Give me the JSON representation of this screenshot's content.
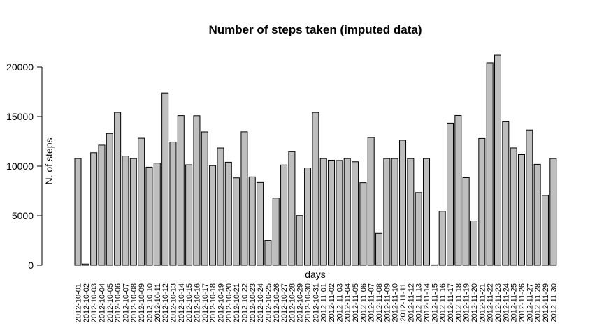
{
  "chart_data": {
    "type": "bar",
    "title": "Number of steps taken (imputed data)",
    "xlabel": "days",
    "ylabel": "N. of steps",
    "ylim": [
      0,
      20000
    ],
    "yticks": [
      0,
      5000,
      10000,
      15000,
      20000
    ],
    "ytick_labels": [
      "0",
      "5000",
      "10000",
      "15000",
      "20000"
    ],
    "grid": false,
    "bar_color": "#bebebe",
    "edge_color": "#000000",
    "categories": [
      "2012-10-01",
      "2012-10-02",
      "2012-10-03",
      "2012-10-04",
      "2012-10-05",
      "2012-10-06",
      "2012-10-07",
      "2012-10-08",
      "2012-10-09",
      "2012-10-10",
      "2012-10-11",
      "2012-10-12",
      "2012-10-13",
      "2012-10-14",
      "2012-10-15",
      "2012-10-16",
      "2012-10-17",
      "2012-10-18",
      "2012-10-19",
      "2012-10-20",
      "2012-10-21",
      "2012-10-22",
      "2012-10-23",
      "2012-10-24",
      "2012-10-25",
      "2012-10-26",
      "2012-10-27",
      "2012-10-28",
      "2012-10-29",
      "2012-10-30",
      "2012-10-31",
      "2012-11-01",
      "2012-11-02",
      "2012-11-03",
      "2012-11-04",
      "2012-11-05",
      "2012-11-06",
      "2012-11-07",
      "2012-11-08",
      "2012-11-09",
      "2012-11-10",
      "2012-11-11",
      "2012-11-12",
      "2012-11-13",
      "2012-11-14",
      "2012-11-15",
      "2012-11-16",
      "2012-11-17",
      "2012-11-18",
      "2012-11-19",
      "2012-11-20",
      "2012-11-21",
      "2012-11-22",
      "2012-11-23",
      "2012-11-24",
      "2012-11-25",
      "2012-11-26",
      "2012-11-27",
      "2012-11-28",
      "2012-11-29",
      "2012-11-30"
    ],
    "values": [
      10766,
      126,
      11352,
      12116,
      13294,
      15420,
      11015,
      10766,
      12811,
      9900,
      10304,
      17382,
      12426,
      15098,
      10139,
      15084,
      13452,
      10056,
      11829,
      10395,
      8821,
      13460,
      8918,
      8355,
      2492,
      6778,
      10119,
      11458,
      5018,
      9819,
      15414,
      10766,
      10600,
      10571,
      10766,
      10439,
      8334,
      12883,
      3219,
      10766,
      10766,
      12608,
      10765,
      7336,
      10766,
      41,
      5441,
      14339,
      15110,
      8841,
      4472,
      12787,
      20427,
      21194,
      14478,
      11834,
      11162,
      13646,
      10183,
      7047,
      10766
    ]
  }
}
